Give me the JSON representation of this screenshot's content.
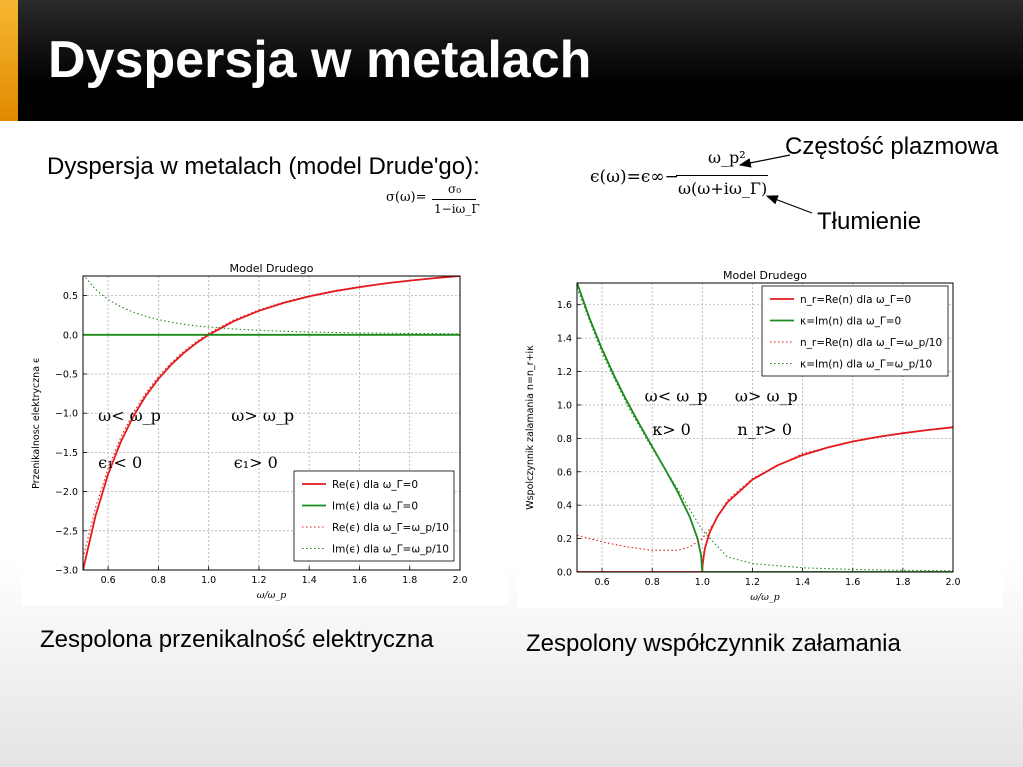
{
  "slide": {
    "title": "Dyspersja w metalach",
    "subtitle": "Dyspersja w metalach (model Drude'go):",
    "formula_sigma": {
      "lhs": "σ(ω)=",
      "numerator": "σ₀",
      "denominator": "1−iω_Γ"
    },
    "formula_eps": {
      "lhs": "ϵ(ω)=ϵ∞−",
      "numerator": "ω_p²",
      "denominator": "ω(ω+iω_Γ)"
    },
    "label_plasma": "Częstość plazmowa",
    "label_damping": "Tłumienie",
    "caption_left": "Zespolona przenikalność elektryczna",
    "caption_right": "Zespolony współczynnik załamania"
  },
  "colors": {
    "red": "#e31a1c",
    "green": "#1a8a1a",
    "grid": "#b0b0b0"
  },
  "chart_data": [
    {
      "type": "line",
      "title": "Model Drudego",
      "xlabel": "ω/ω_p",
      "ylabel": "Przenikalnosc elektryczna ϵ",
      "xlim": [
        0.5,
        2.0
      ],
      "ylim": [
        -3.0,
        0.75
      ],
      "xticks": [
        "0.6",
        "0.8",
        "1.0",
        "1.2",
        "1.4",
        "1.6",
        "1.8",
        "2.0"
      ],
      "xtick_values": [
        0.6,
        0.8,
        1.0,
        1.2,
        1.4,
        1.6,
        1.8,
        2.0
      ],
      "yticks": [
        "0.5",
        "0.0",
        "−0.5",
        "−1.0",
        "−1.5",
        "−2.0",
        "−2.5",
        "−3.0"
      ],
      "ytick_values": [
        0.5,
        0.0,
        -0.5,
        -1.0,
        -1.5,
        -2.0,
        -2.5,
        -3.0
      ],
      "grid": true,
      "legend_position": "lower-right",
      "series": [
        {
          "name": "Re(ϵ) dla ω_Γ=0",
          "color": "#e31a1c",
          "style": "solid",
          "x": [
            0.5,
            0.55,
            0.6,
            0.65,
            0.7,
            0.75,
            0.8,
            0.85,
            0.9,
            0.95,
            1.0,
            1.1,
            1.2,
            1.3,
            1.4,
            1.5,
            1.6,
            1.7,
            1.8,
            1.9,
            2.0
          ],
          "y": [
            -3.0,
            -2.306,
            -1.778,
            -1.367,
            -1.041,
            -0.778,
            -0.563,
            -0.384,
            -0.235,
            -0.108,
            0.0,
            0.174,
            0.306,
            0.408,
            0.49,
            0.556,
            0.609,
            0.654,
            0.691,
            0.723,
            0.75
          ]
        },
        {
          "name": "Im(ϵ) dla ω_Γ=0",
          "color": "#1a8a1a",
          "style": "solid",
          "x": [
            0.5,
            2.0
          ],
          "y": [
            0.0,
            0.0
          ]
        },
        {
          "name": "Re(ϵ) dla ω_Γ=ω_p/10",
          "color": "#e31a1c",
          "style": "dotted",
          "x": [
            0.5,
            0.55,
            0.6,
            0.65,
            0.7,
            0.75,
            0.8,
            0.85,
            0.9,
            0.95,
            1.0,
            1.1,
            1.2,
            1.3,
            1.4,
            1.5,
            1.6,
            1.7,
            1.8,
            1.9,
            2.0
          ],
          "y": [
            -2.846,
            -2.202,
            -1.703,
            -1.31,
            -0.996,
            -0.741,
            -0.532,
            -0.358,
            -0.212,
            -0.088,
            0.02,
            0.189,
            0.318,
            0.417,
            0.497,
            0.562,
            0.615,
            0.658,
            0.695,
            0.726,
            0.752
          ]
        },
        {
          "name": "Im(ϵ) dla ω_Γ=ω_p/10",
          "color": "#1a8a1a",
          "style": "dotted",
          "x": [
            0.5,
            0.55,
            0.6,
            0.65,
            0.7,
            0.75,
            0.8,
            0.85,
            0.9,
            0.95,
            1.0,
            1.1,
            1.2,
            1.3,
            1.4,
            1.5,
            1.6,
            1.7,
            1.8,
            1.9,
            2.0
          ],
          "y": [
            0.769,
            0.577,
            0.45,
            0.358,
            0.289,
            0.235,
            0.194,
            0.161,
            0.135,
            0.114,
            0.099,
            0.074,
            0.057,
            0.045,
            0.036,
            0.029,
            0.024,
            0.02,
            0.017,
            0.015,
            0.012
          ]
        }
      ],
      "annotations": [
        {
          "text": "ω< ω_p",
          "x": 0.56,
          "y": -1.1
        },
        {
          "text": "ω> ω_p",
          "x": 1.09,
          "y": -1.1
        },
        {
          "text": "ϵ₁< 0",
          "x": 0.56,
          "y": -1.7
        },
        {
          "text": "ϵ₁> 0",
          "x": 1.1,
          "y": -1.7
        }
      ]
    },
    {
      "type": "line",
      "title": "Model Drudego",
      "xlabel": "ω/ω_p",
      "ylabel": "Wspolczynnik zalamania n=n_r+iκ",
      "xlim": [
        0.5,
        2.0
      ],
      "ylim": [
        0.0,
        1.73
      ],
      "xticks": [
        "0.6",
        "0.8",
        "1.0",
        "1.2",
        "1.4",
        "1.6",
        "1.8",
        "2.0"
      ],
      "xtick_values": [
        0.6,
        0.8,
        1.0,
        1.2,
        1.4,
        1.6,
        1.8,
        2.0
      ],
      "yticks": [
        "1.6",
        "1.4",
        "1.2",
        "1.0",
        "0.8",
        "0.6",
        "0.4",
        "0.2",
        "0.0"
      ],
      "ytick_values": [
        1.6,
        1.4,
        1.2,
        1.0,
        0.8,
        0.6,
        0.4,
        0.2,
        0.0
      ],
      "grid": true,
      "legend_position": "top-right",
      "series": [
        {
          "name": "n_r=Re(n) dla ω_Γ=0",
          "color": "#e31a1c",
          "style": "solid",
          "x": [
            0.5,
            1.0,
            1.001,
            1.01,
            1.03,
            1.06,
            1.1,
            1.2,
            1.3,
            1.4,
            1.5,
            1.6,
            1.7,
            1.8,
            1.9,
            2.0
          ],
          "y": [
            0.0,
            0.0,
            0.045,
            0.14,
            0.24,
            0.332,
            0.417,
            0.553,
            0.639,
            0.7,
            0.745,
            0.781,
            0.809,
            0.831,
            0.85,
            0.866
          ]
        },
        {
          "name": "κ=Im(n) dla ω_Γ=0",
          "color": "#1a8a1a",
          "style": "solid",
          "x": [
            0.5,
            0.55,
            0.6,
            0.65,
            0.7,
            0.75,
            0.8,
            0.85,
            0.9,
            0.95,
            0.98,
            0.995,
            1.0,
            2.0
          ],
          "y": [
            1.732,
            1.519,
            1.333,
            1.169,
            1.02,
            0.882,
            0.75,
            0.62,
            0.484,
            0.329,
            0.204,
            0.1,
            0.0,
            0.0
          ]
        },
        {
          "name": "n_r=Re(n) dla ω_Γ=ω_p/10",
          "color": "#e31a1c",
          "style": "dotted",
          "x": [
            0.5,
            0.6,
            0.7,
            0.8,
            0.9,
            0.95,
            1.0,
            1.05,
            1.1,
            1.2,
            1.4,
            1.6,
            1.8,
            2.0
          ],
          "y": [
            0.22,
            0.18,
            0.15,
            0.13,
            0.13,
            0.15,
            0.2,
            0.3,
            0.43,
            0.56,
            0.71,
            0.78,
            0.83,
            0.87
          ]
        },
        {
          "name": "κ=Im(n) dla ω_Γ=ω_p/10",
          "color": "#1a8a1a",
          "style": "dotted",
          "x": [
            0.5,
            0.6,
            0.7,
            0.8,
            0.9,
            1.0,
            1.1,
            1.2,
            1.4,
            1.6,
            1.8,
            2.0
          ],
          "y": [
            1.7,
            1.31,
            1.0,
            0.74,
            0.5,
            0.25,
            0.09,
            0.05,
            0.025,
            0.015,
            0.01,
            0.007
          ]
        }
      ],
      "annotations": [
        {
          "text": "ω< ω_p",
          "x": 0.77,
          "y": 1.02
        },
        {
          "text": "ω> ω_p",
          "x": 1.13,
          "y": 1.02
        },
        {
          "text": "κ> 0",
          "x": 0.8,
          "y": 0.82
        },
        {
          "text": "n_r> 0",
          "x": 1.14,
          "y": 0.82
        }
      ]
    }
  ]
}
